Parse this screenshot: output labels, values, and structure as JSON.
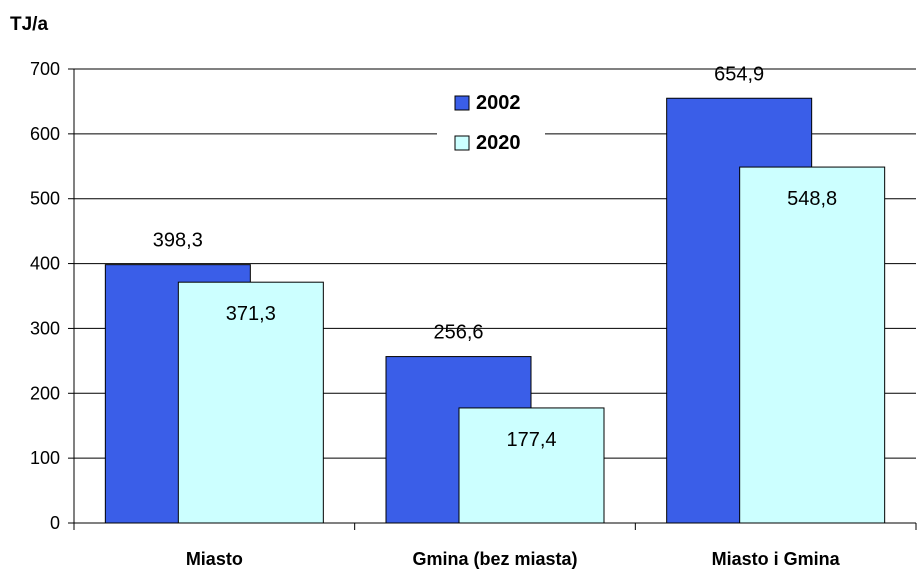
{
  "chart_data": {
    "type": "bar",
    "ylabel": "TJ/a",
    "categories": [
      "Miasto",
      "Gmina (bez miasta)",
      "Miasto i Gmina"
    ],
    "series": [
      {
        "name": "2002",
        "values": [
          398.3,
          256.6,
          654.9
        ],
        "labels": [
          "398,3",
          "256,6",
          "654,9"
        ],
        "color": "#3a5ee8"
      },
      {
        "name": "2020",
        "values": [
          371.3,
          177.4,
          548.8
        ],
        "labels": [
          "371,3",
          "177,4",
          "548,8"
        ],
        "color": "#ccffff"
      }
    ],
    "ylim": [
      0,
      700
    ],
    "yticks": [
      0,
      100,
      200,
      300,
      400,
      500,
      600,
      700
    ],
    "grid": true,
    "legend_position": "top-center"
  }
}
